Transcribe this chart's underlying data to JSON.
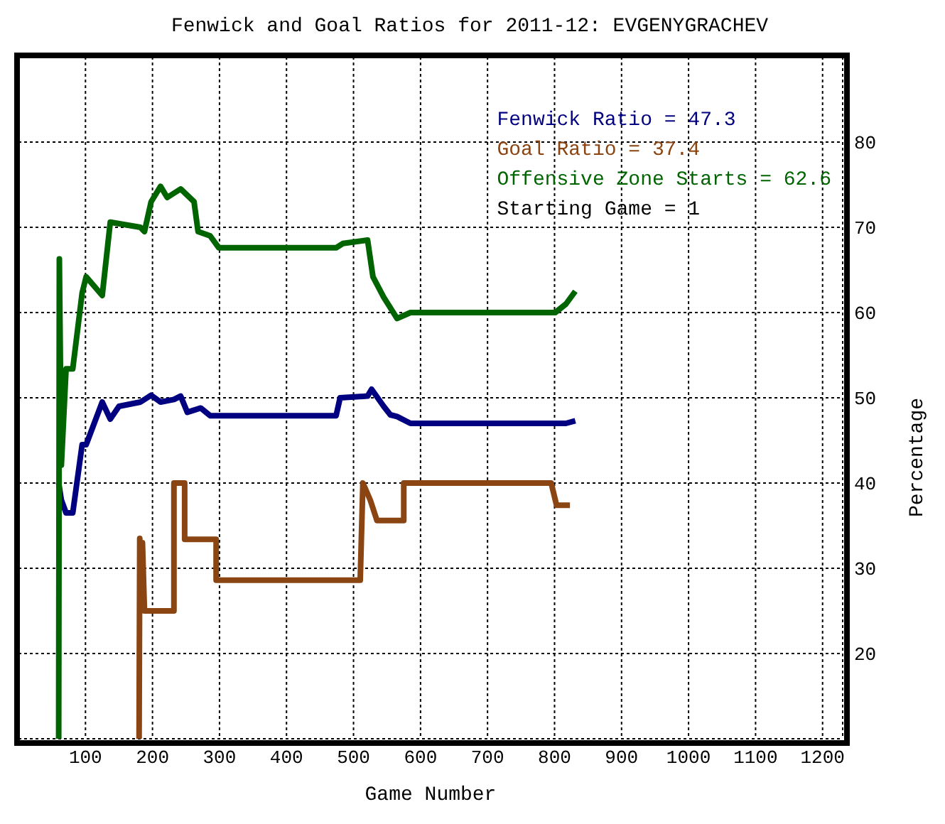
{
  "chart_data": {
    "type": "line",
    "title": "Fenwick and Goal Ratios for 2011-12: EVGENYGRACHEV",
    "xlabel": "Game Number",
    "ylabel": "Percentage",
    "xlim": [
      0,
      1230
    ],
    "xticks": [
      100,
      200,
      300,
      400,
      500,
      600,
      700,
      800,
      900,
      1000,
      1100,
      1200
    ],
    "ylim": [
      10,
      90
    ],
    "yticks": [
      20,
      30,
      40,
      50,
      60,
      70,
      80
    ],
    "grid": true,
    "legend": "top right",
    "marker": "none",
    "line_style": "solid",
    "annotations": [
      "Starting Game = 1"
    ],
    "series": [
      {
        "name": "Fenwick Ratio = 47.3",
        "color": "#000080",
        "x": [
          60,
          64,
          71,
          81,
          95,
          101,
          125,
          137,
          150,
          182,
          198,
          212,
          232,
          242,
          252,
          272,
          286,
          299,
          474,
          480,
          521,
          527,
          545,
          555,
          565,
          585,
          801,
          817,
          831
        ],
        "values": [
          40,
          38,
          36.5,
          36.5,
          44.5,
          44.5,
          49.5,
          47.5,
          49,
          49.5,
          50.3,
          49.5,
          49.8,
          50.2,
          48.3,
          48.8,
          47.9,
          47.9,
          47.9,
          50,
          50.2,
          51,
          49,
          48,
          47.8,
          47,
          47,
          47,
          47.3
        ]
      },
      {
        "name": "Goal Ratio = 37.4",
        "color": "#8b4513",
        "x": [
          180,
          181,
          183,
          185,
          188,
          232,
          232,
          248,
          248,
          295,
          295,
          510,
          514,
          525,
          535,
          575,
          575,
          795,
          803,
          823
        ],
        "values": [
          10,
          33.5,
          25,
          33,
          25,
          25,
          40,
          40,
          33.4,
          33.4,
          28.6,
          28.6,
          40,
          38,
          35.6,
          35.6,
          40,
          40,
          37.4,
          37.4
        ]
      },
      {
        "name": "Offensive Zone Starts = 62.6",
        "color": "#006400",
        "x": [
          60,
          61,
          64,
          71,
          81,
          95,
          101,
          125,
          137,
          182,
          188,
          198,
          212,
          222,
          242,
          262,
          268,
          286,
          299,
          474,
          484,
          521,
          529,
          545,
          565,
          585,
          801,
          817,
          831
        ],
        "values": [
          10,
          66.3,
          42.1,
          53.4,
          53.4,
          62.3,
          64.2,
          62,
          70.6,
          70,
          69.5,
          73,
          74.8,
          73.5,
          74.5,
          73,
          69.5,
          69,
          67.6,
          67.6,
          68.1,
          68.5,
          64.2,
          61.8,
          59.3,
          60,
          60,
          61,
          62.5
        ]
      }
    ]
  }
}
